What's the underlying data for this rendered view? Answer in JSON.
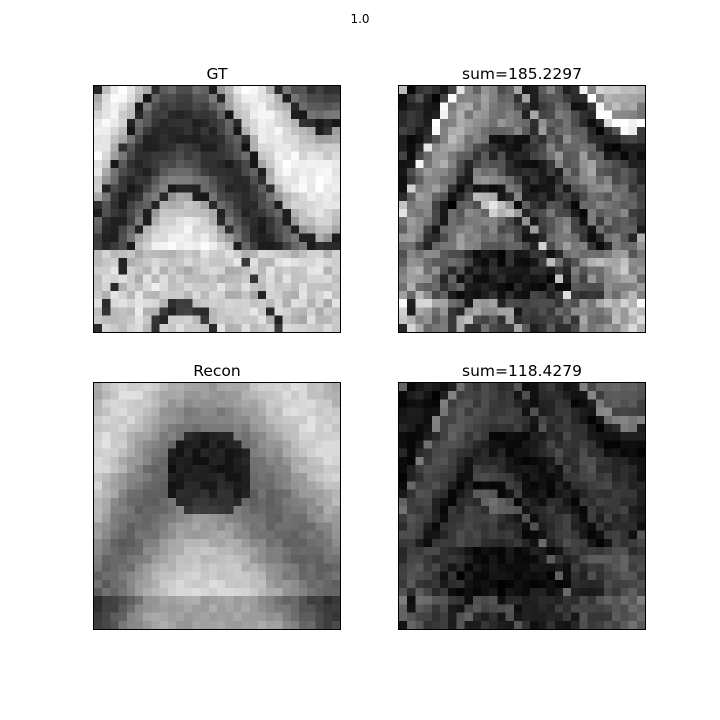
{
  "figure": {
    "suptitle": "1.0"
  },
  "panels": [
    {
      "id": "gt",
      "title": "GT"
    },
    {
      "id": "diff1",
      "title": "sum=185.2297"
    },
    {
      "id": "recon",
      "title": "Recon"
    },
    {
      "id": "diff2",
      "title": "sum=118.4279"
    }
  ],
  "colormap": "gray"
}
